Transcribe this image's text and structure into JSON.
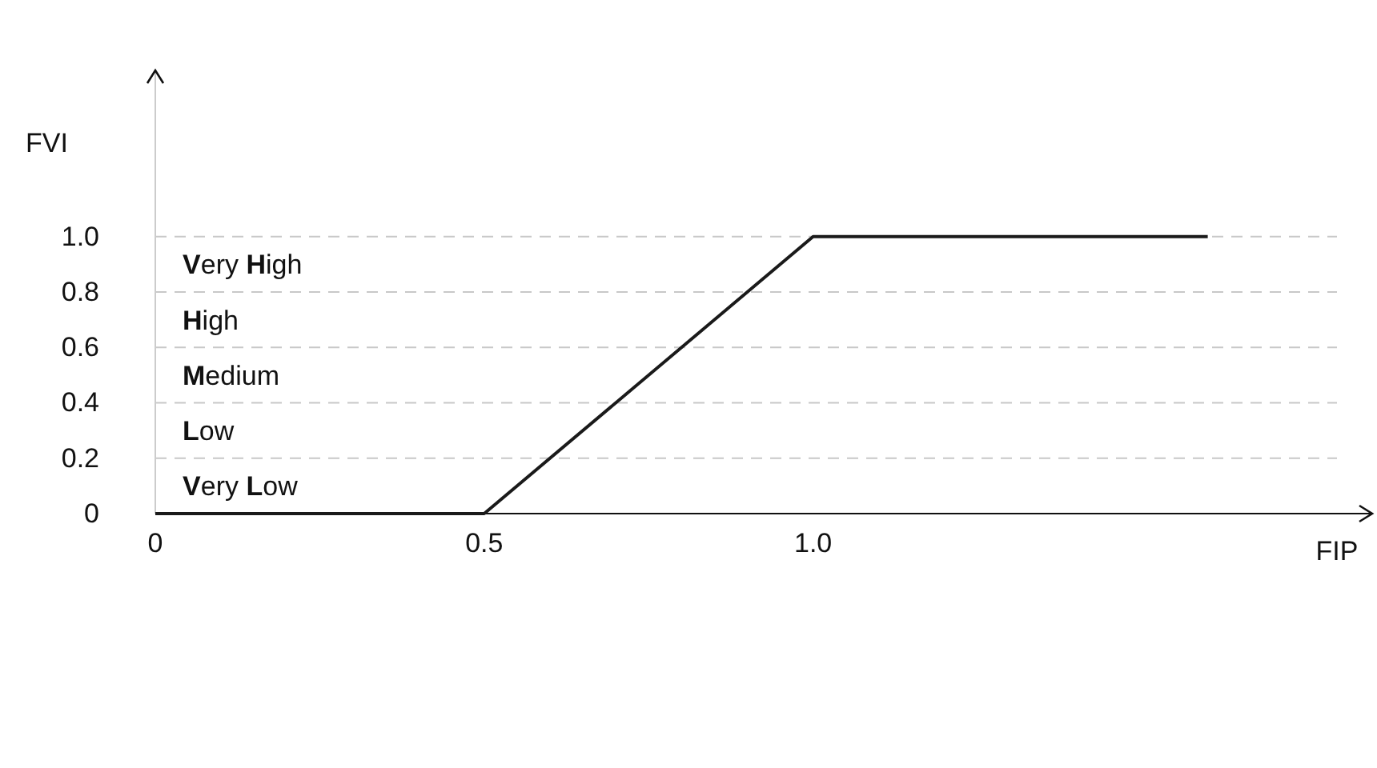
{
  "chart_data": {
    "type": "line",
    "xlabel": "FIP",
    "ylabel": "FVI",
    "x": [
      0,
      0.5,
      1.0,
      1.6
    ],
    "series": [
      {
        "color": "#1a1a1a",
        "values": [
          0,
          0,
          1.0,
          1.0
        ]
      }
    ],
    "xlim": [
      0,
      1.85
    ],
    "xticks": [
      0,
      0.5,
      {
        "value": 1.0,
        "label": "1.0"
      }
    ],
    "ylim": [
      0,
      1.6
    ],
    "yticks": [
      0,
      0.2,
      0.4,
      0.6,
      0.8,
      {
        "value": 1.0,
        "label": "1.0"
      }
    ],
    "grid": "y",
    "marker": "none",
    "line_style": "solid",
    "annotations": [
      "Very Low",
      "Low",
      "Medium",
      "High",
      "Very High"
    ]
  }
}
